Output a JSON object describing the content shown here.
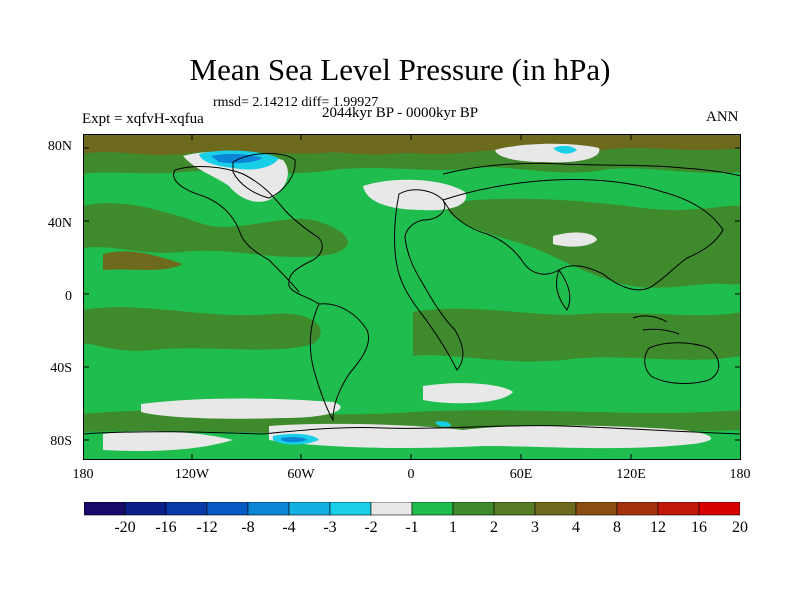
{
  "title": "Mean Sea Level Pressure (in hPa)",
  "stats_line": "rmsd= 2.14212 diff= 1.99927",
  "experiment_label": "Expt = xqfvH-xqfua",
  "period_label": "2044kyr BP - 0000kyr BP",
  "season_label": "ANN",
  "y_ticks": [
    "80N",
    "40N",
    "0",
    "40S",
    "80S"
  ],
  "x_ticks": [
    "180",
    "120W",
    "60W",
    "0",
    "60E",
    "120E",
    "180"
  ],
  "colorbar": {
    "labels": [
      "-20",
      "-16",
      "-12",
      "-8",
      "-4",
      "-3",
      "-2",
      "-1",
      "1",
      "2",
      "3",
      "4",
      "8",
      "12",
      "16",
      "20"
    ],
    "colors": [
      "#1a0a6b",
      "#0b1e8a",
      "#0a3aa8",
      "#0858c4",
      "#0b86d6",
      "#14b0e2",
      "#19cfe8",
      "#e8e8e8",
      "#1fbd4e",
      "#3f8a2c",
      "#567c25",
      "#6d6a1e",
      "#8a4e12",
      "#a5300c",
      "#c21808",
      "#d80000"
    ]
  },
  "colors": {
    "ocean_base": "#1fbd4e",
    "positive_band": "#3f8a2c",
    "strong_positive": "#6d6a1e",
    "near_zero": "#e8e8e8",
    "negative_cyan": "#19cfe8",
    "negative_blue": "#0b86d6"
  }
}
